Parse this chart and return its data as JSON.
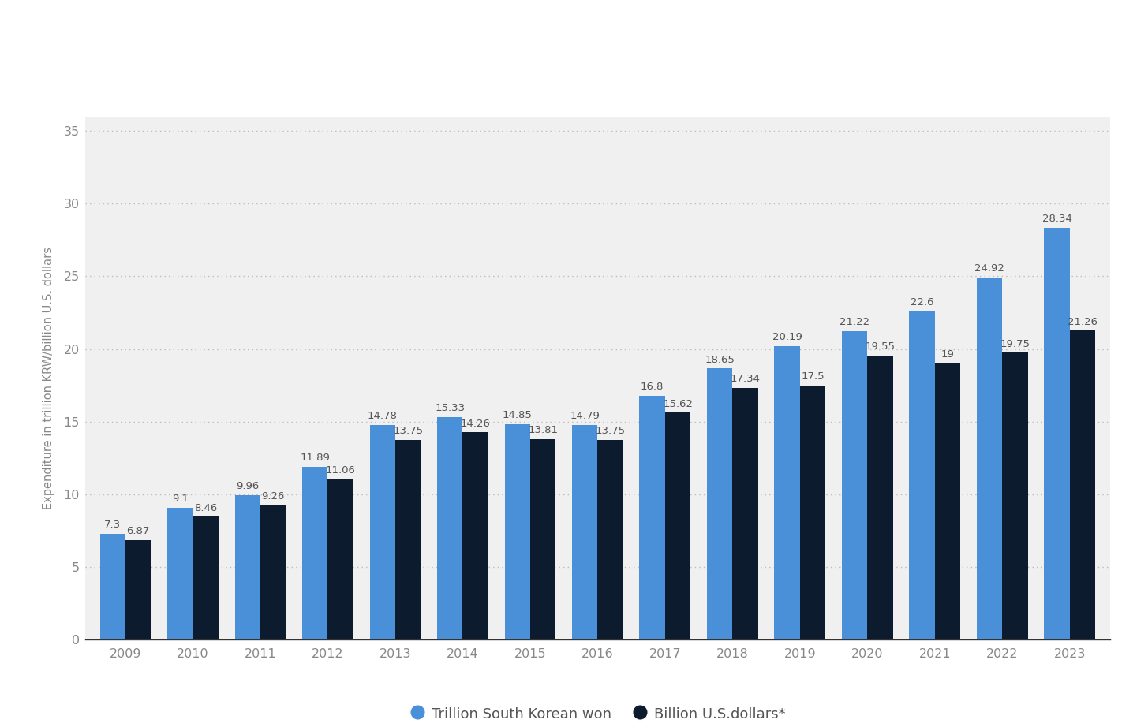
{
  "years": [
    2009,
    2010,
    2011,
    2012,
    2013,
    2014,
    2015,
    2016,
    2017,
    2018,
    2019,
    2020,
    2021,
    2022,
    2023
  ],
  "krw_values": [
    7.3,
    9.1,
    9.96,
    11.89,
    14.78,
    15.33,
    14.85,
    14.79,
    16.8,
    18.65,
    20.19,
    21.22,
    22.6,
    24.92,
    28.34
  ],
  "usd_values": [
    6.87,
    8.46,
    9.26,
    11.06,
    13.75,
    14.26,
    13.81,
    13.75,
    15.62,
    17.34,
    17.5,
    19.55,
    19.0,
    19.75,
    21.26
  ],
  "krw_color": "#4a90d9",
  "usd_color": "#0d1b2e",
  "outer_bg": "#ffffff",
  "plot_bg": "#f0f0f0",
  "top_bar_bg": "#e8e8e8",
  "ylabel": "Expenditure in trillion KRW/billion U.S. dollars",
  "ylim": [
    0,
    36
  ],
  "yticks": [
    0,
    5,
    10,
    15,
    20,
    25,
    30,
    35
  ],
  "legend_krw": "Trillion South Korean won",
  "legend_usd": "Billion U.S.dollars*",
  "bar_width": 0.38,
  "grid_color": "#bbbbbb",
  "label_fontsize": 10.5,
  "tick_fontsize": 11.5,
  "legend_fontsize": 13,
  "value_fontsize": 9.5,
  "tick_color": "#888888",
  "value_color": "#555555"
}
